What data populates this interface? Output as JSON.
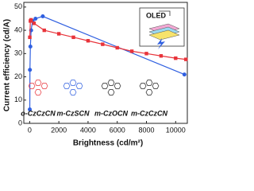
{
  "chart_data": {
    "type": "line",
    "x_label": "Brightness (cd/m²)",
    "y_label": "Current efficiency (cd/A)",
    "xlim": [
      -400,
      10800
    ],
    "xticks": [
      0,
      2000,
      4000,
      6000,
      8000,
      10000
    ],
    "ylim": [
      0,
      52
    ],
    "yticks": [
      0,
      10,
      20,
      30,
      40,
      50
    ],
    "series": [
      {
        "name": "m-CzSCN",
        "color": "#2f5fe0",
        "marker": "circle",
        "x": [
          10,
          20,
          50,
          100,
          200,
          400,
          900,
          10600
        ],
        "values": [
          6,
          23,
          33,
          40,
          44,
          45,
          46,
          21
        ]
      },
      {
        "name": "o-CzCzCN",
        "color": "#e8333a",
        "marker": "square",
        "x": [
          10,
          50,
          100,
          300,
          1000,
          2000,
          3000,
          4000,
          5000,
          6000,
          7000,
          8000,
          9000,
          10000,
          10700
        ],
        "values": [
          37,
          44,
          44.5,
          43,
          40,
          38.5,
          37,
          35.5,
          34,
          32.5,
          31,
          30,
          29,
          28,
          27.5
        ]
      }
    ],
    "annotations": {
      "device": "OLED",
      "molecules": [
        {
          "text": "o-CzCzCN",
          "color": "#e8333a"
        },
        {
          "text": "m-CzSCN",
          "color": "#2f5fe0"
        },
        {
          "text": "m-CzOCN",
          "color": "#222222"
        },
        {
          "text": "m-CzCzCN",
          "color": "#222222"
        }
      ]
    }
  }
}
